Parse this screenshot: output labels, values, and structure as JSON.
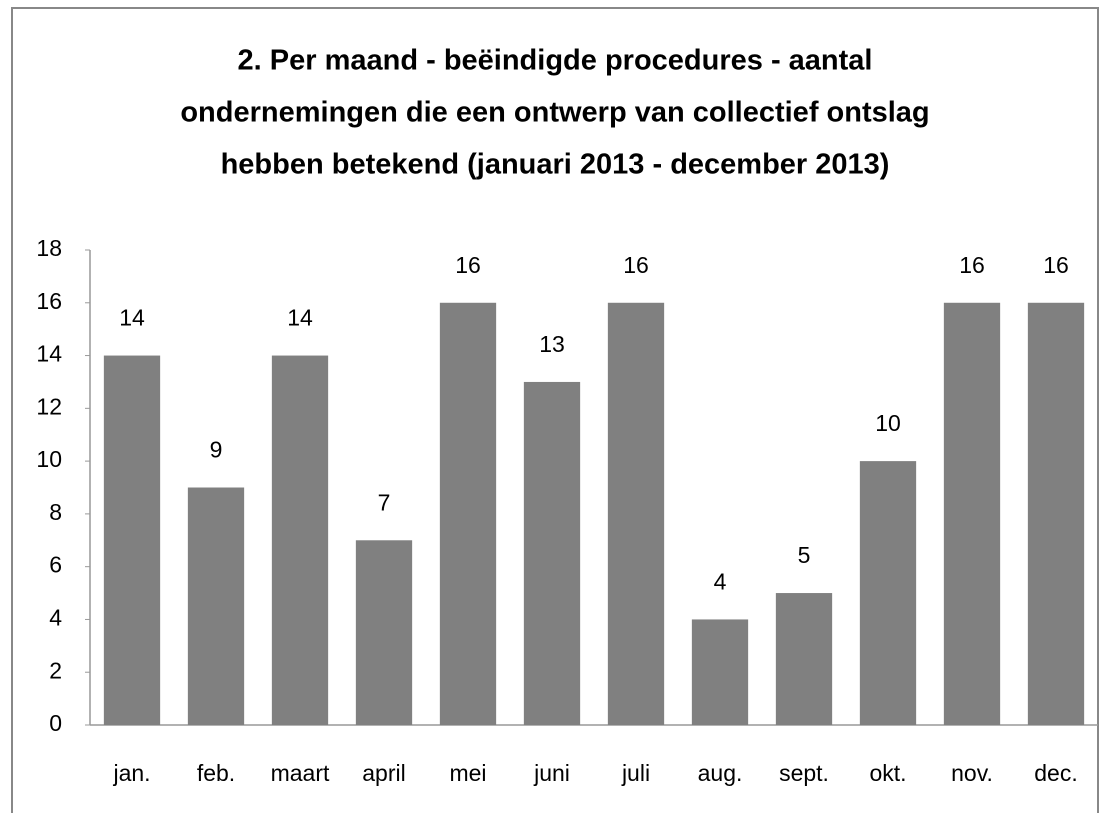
{
  "chart_data": {
    "type": "bar",
    "title": [
      "2. Per maand  - beëindigde procedures - aantal",
      "ondernemingen die een ontwerp van collectief ontslag",
      "hebben betekend (januari 2013 - december 2013)"
    ],
    "categories": [
      "jan.",
      "feb.",
      "maart",
      "april",
      "mei",
      "juni",
      "juli",
      "aug.",
      "sept.",
      "okt.",
      "nov.",
      "dec."
    ],
    "values": [
      14,
      9,
      14,
      7,
      16,
      13,
      16,
      4,
      5,
      10,
      16,
      16
    ],
    "color": "#808080",
    "ylim": [
      0,
      18
    ],
    "yticks": [
      0,
      2,
      4,
      6,
      8,
      10,
      12,
      14,
      16,
      18
    ],
    "grid": false
  }
}
